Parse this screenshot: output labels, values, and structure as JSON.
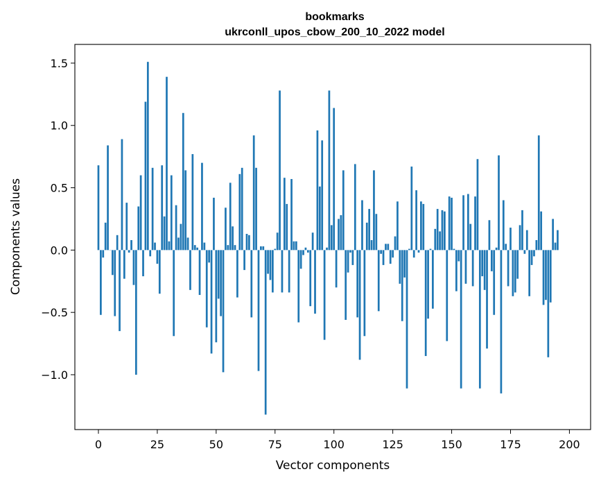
{
  "chart_data": {
    "type": "bar",
    "title": "bookmarks",
    "subtitle": "ukrconll_upos_cbow_200_10_2022 model",
    "xlabel": "Vector components",
    "ylabel": "Components values",
    "xlim": [
      -10,
      209
    ],
    "ylim": [
      -1.44,
      1.65
    ],
    "xticks": [
      0,
      25,
      50,
      75,
      100,
      125,
      150,
      175,
      200
    ],
    "xtick_labels": [
      "0",
      "25",
      "50",
      "75",
      "100",
      "125",
      "150",
      "175",
      "200"
    ],
    "yticks": [
      -1.0,
      -0.5,
      0.0,
      0.5,
      1.0,
      1.5
    ],
    "ytick_labels": [
      "−1.0",
      "−0.5",
      "0.0",
      "0.5",
      "1.0",
      "1.5"
    ],
    "grid": false,
    "color": "#1f77b4",
    "values": [
      0.68,
      -0.52,
      -0.06,
      0.22,
      0.84,
      0.0,
      -0.2,
      -0.53,
      0.12,
      -0.65,
      0.89,
      -0.23,
      0.38,
      -0.02,
      0.08,
      -0.28,
      -1.0,
      0.35,
      0.6,
      -0.21,
      1.19,
      1.51,
      -0.05,
      0.66,
      0.06,
      -0.11,
      -0.35,
      0.68,
      0.27,
      1.39,
      0.07,
      0.6,
      -0.69,
      0.36,
      0.1,
      0.21,
      1.1,
      0.64,
      0.1,
      -0.32,
      0.77,
      0.04,
      0.02,
      -0.36,
      0.7,
      0.06,
      -0.62,
      -0.1,
      -0.83,
      0.42,
      -0.74,
      -0.39,
      -0.53,
      -0.98,
      0.34,
      0.04,
      0.54,
      0.19,
      0.04,
      -0.38,
      0.61,
      0.66,
      -0.16,
      0.13,
      0.12,
      -0.54,
      0.92,
      0.66,
      -0.97,
      0.03,
      0.03,
      -1.32,
      -0.19,
      -0.24,
      -0.34,
      0.01,
      0.14,
      1.28,
      -0.34,
      0.58,
      0.37,
      -0.34,
      0.57,
      0.07,
      0.07,
      -0.58,
      -0.15,
      -0.04,
      0.02,
      -0.02,
      -0.45,
      0.14,
      -0.51,
      0.96,
      0.51,
      0.88,
      -0.72,
      0.02,
      1.28,
      0.2,
      1.14,
      -0.3,
      0.25,
      0.28,
      0.64,
      -0.56,
      -0.18,
      -0.02,
      -0.12,
      0.69,
      -0.54,
      -0.88,
      0.4,
      -0.69,
      0.22,
      0.33,
      0.08,
      0.64,
      0.29,
      -0.49,
      -0.03,
      -0.12,
      0.05,
      0.05,
      -0.11,
      -0.06,
      0.11,
      0.39,
      -0.27,
      -0.57,
      -0.22,
      -1.11,
      0.01,
      0.67,
      -0.06,
      0.48,
      -0.02,
      0.39,
      0.37,
      -0.85,
      -0.55,
      0.01,
      -0.47,
      0.17,
      0.33,
      0.15,
      0.32,
      0.31,
      -0.73,
      0.43,
      0.42,
      0.01,
      -0.33,
      -0.09,
      -1.11,
      0.44,
      -0.27,
      0.45,
      0.21,
      -0.29,
      0.43,
      0.73,
      -1.11,
      -0.21,
      -0.32,
      -0.79,
      0.24,
      -0.17,
      -0.52,
      0.02,
      0.76,
      -1.15,
      0.4,
      0.05,
      -0.29,
      0.18,
      -0.37,
      -0.34,
      -0.23,
      0.2,
      0.32,
      -0.03,
      0.16,
      -0.37,
      -0.12,
      -0.05,
      0.08,
      0.92,
      0.31,
      -0.44,
      -0.4,
      -0.86,
      -0.42,
      0.25,
      0.06,
      0.16
    ]
  }
}
